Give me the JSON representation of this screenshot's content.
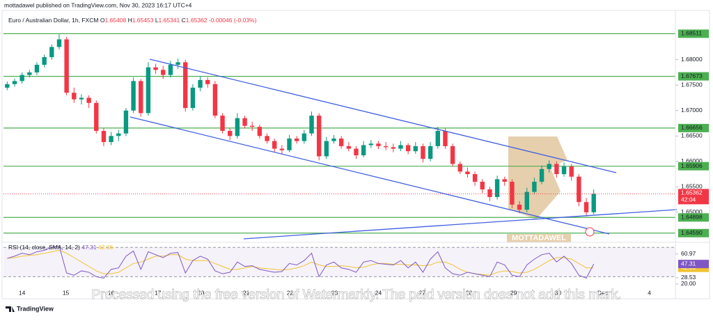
{
  "header": {
    "published": "mottadawel published on TradingView.com, Nov 30, 2023 16:17 UTC+4",
    "brand": "TradingView",
    "logo_text": "MOTTADAWEL",
    "watermark": "Processed using the free version of Watermarkly. The paid version does not add this mark."
  },
  "chart_data": {
    "type": "candlestick",
    "symbol": "Euro / Australian Dollar, 1h, FXCM",
    "ohlc_labels": [
      "O",
      "H",
      "L",
      "C"
    ],
    "ohlc": [
      1.65408,
      1.65453,
      1.65341,
      1.65362
    ],
    "change": "-0.00046 (-0.03%)",
    "up_color": "#089981",
    "down_color": "#f23645",
    "candles": [
      [
        1.6745,
        1.6757,
        1.674,
        1.6752
      ],
      [
        1.6752,
        1.6763,
        1.6747,
        1.6758
      ],
      [
        1.6758,
        1.6775,
        1.6753,
        1.677
      ],
      [
        1.677,
        1.678,
        1.6765,
        1.6775
      ],
      [
        1.6775,
        1.6795,
        1.677,
        1.679
      ],
      [
        1.679,
        1.681,
        1.6785,
        1.6805
      ],
      [
        1.6805,
        1.683,
        1.68,
        1.6825
      ],
      [
        1.6825,
        1.685,
        1.682,
        1.684
      ],
      [
        1.684,
        1.6845,
        1.673,
        1.6735
      ],
      [
        1.6735,
        1.6745,
        1.6715,
        1.6722
      ],
      [
        1.6722,
        1.6732,
        1.6712,
        1.6725
      ],
      [
        1.6725,
        1.673,
        1.6705,
        1.6715
      ],
      [
        1.6715,
        1.672,
        1.6655,
        1.666
      ],
      [
        1.666,
        1.6665,
        1.663,
        1.6638
      ],
      [
        1.6638,
        1.6658,
        1.6632,
        1.665
      ],
      [
        1.665,
        1.6662,
        1.664,
        1.6655
      ],
      [
        1.6655,
        1.6705,
        1.665,
        1.67
      ],
      [
        1.67,
        1.6765,
        1.6695,
        1.6758
      ],
      [
        1.6758,
        1.6762,
        1.6688,
        1.6695
      ],
      [
        1.6695,
        1.6795,
        1.669,
        1.6785
      ],
      [
        1.6785,
        1.6792,
        1.6772,
        1.678
      ],
      [
        1.678,
        1.6788,
        1.6762,
        1.677
      ],
      [
        1.677,
        1.6798,
        1.6765,
        1.679
      ],
      [
        1.679,
        1.6802,
        1.6782,
        1.6795
      ],
      [
        1.6795,
        1.68,
        1.6698,
        1.6705
      ],
      [
        1.6705,
        1.6752,
        1.67,
        1.6745
      ],
      [
        1.6745,
        1.6768,
        1.6738,
        1.676
      ],
      [
        1.676,
        1.6765,
        1.6745,
        1.6752
      ],
      [
        1.6752,
        1.6758,
        1.6685,
        1.669
      ],
      [
        1.669,
        1.6695,
        1.6655,
        1.666
      ],
      [
        1.666,
        1.6665,
        1.6642,
        1.665
      ],
      [
        1.665,
        1.6695,
        1.6645,
        1.6685
      ],
      [
        1.6685,
        1.669,
        1.6665,
        1.667
      ],
      [
        1.667,
        1.6678,
        1.666,
        1.6668
      ],
      [
        1.6668,
        1.6672,
        1.6645,
        1.665
      ],
      [
        1.665,
        1.6655,
        1.6635,
        1.664
      ],
      [
        1.664,
        1.6645,
        1.6618,
        1.6625
      ],
      [
        1.6625,
        1.6632,
        1.6615,
        1.6622
      ],
      [
        1.6622,
        1.6652,
        1.6618,
        1.6645
      ],
      [
        1.6645,
        1.665,
        1.6635,
        1.664
      ],
      [
        1.664,
        1.6662,
        1.6635,
        1.6655
      ],
      [
        1.6655,
        1.6698,
        1.665,
        1.669
      ],
      [
        1.669,
        1.6695,
        1.6602,
        1.661
      ],
      [
        1.661,
        1.6648,
        1.6605,
        1.664
      ],
      [
        1.664,
        1.6652,
        1.6635,
        1.6645
      ],
      [
        1.6645,
        1.665,
        1.6625,
        1.663
      ],
      [
        1.663,
        1.6638,
        1.662,
        1.6625
      ],
      [
        1.6625,
        1.663,
        1.6605,
        1.6612
      ],
      [
        1.6612,
        1.664,
        1.6608,
        1.6632
      ],
      [
        1.6632,
        1.6642,
        1.6626,
        1.6635
      ],
      [
        1.6635,
        1.664,
        1.6624,
        1.663
      ],
      [
        1.663,
        1.6638,
        1.6622,
        1.6628
      ],
      [
        1.6628,
        1.6635,
        1.6618,
        1.6625
      ],
      [
        1.6625,
        1.664,
        1.662,
        1.6632
      ],
      [
        1.6632,
        1.6636,
        1.6614,
        1.662
      ],
      [
        1.662,
        1.6638,
        1.6615,
        1.663
      ],
      [
        1.663,
        1.6635,
        1.6598,
        1.6605
      ],
      [
        1.6605,
        1.6638,
        1.66,
        1.663
      ],
      [
        1.663,
        1.6668,
        1.6625,
        1.666
      ],
      [
        1.666,
        1.6665,
        1.6625,
        1.663
      ],
      [
        1.663,
        1.6635,
        1.659,
        1.6595
      ],
      [
        1.6595,
        1.66,
        1.6575,
        1.658
      ],
      [
        1.658,
        1.6588,
        1.6568,
        1.6575
      ],
      [
        1.6575,
        1.658,
        1.6552,
        1.656
      ],
      [
        1.656,
        1.6565,
        1.6538,
        1.6545
      ],
      [
        1.6545,
        1.655,
        1.6522,
        1.653
      ],
      [
        1.653,
        1.6572,
        1.6525,
        1.6565
      ],
      [
        1.6565,
        1.657,
        1.6552,
        1.656
      ],
      [
        1.656,
        1.6565,
        1.6508,
        1.6515
      ],
      [
        1.6515,
        1.6522,
        1.6498,
        1.6505
      ],
      [
        1.6505,
        1.6548,
        1.65,
        1.654
      ],
      [
        1.654,
        1.6568,
        1.6535,
        1.656
      ],
      [
        1.656,
        1.6592,
        1.6555,
        1.6585
      ],
      [
        1.6585,
        1.6602,
        1.6578,
        1.6595
      ],
      [
        1.6595,
        1.66,
        1.6568,
        1.6575
      ],
      [
        1.6575,
        1.6598,
        1.657,
        1.659
      ],
      [
        1.659,
        1.6595,
        1.6562,
        1.657
      ],
      [
        1.657,
        1.6575,
        1.6512,
        1.652
      ],
      [
        1.652,
        1.6528,
        1.6492,
        1.65
      ],
      [
        1.65,
        1.6545,
        1.6496,
        1.65362
      ]
    ],
    "xlim": [
      0,
      90.5
    ],
    "xticks": [
      {
        "value": 2.5,
        "label": "14"
      },
      {
        "value": 8.4,
        "label": "15"
      },
      {
        "value": 14.5,
        "label": "16"
      },
      {
        "value": 20.8,
        "label": "17"
      },
      {
        "value": 26.6,
        "label": "20"
      },
      {
        "value": 32.7,
        "label": "21"
      },
      {
        "value": 38.6,
        "label": "22"
      },
      {
        "value": 44.6,
        "label": "23"
      },
      {
        "value": 50.5,
        "label": "24"
      },
      {
        "value": 56.4,
        "label": "27"
      },
      {
        "value": 62.7,
        "label": "28"
      },
      {
        "value": 68.7,
        "label": "29"
      },
      {
        "value": 74.7,
        "label": "30"
      },
      {
        "value": 80.7,
        "label": "Dec"
      },
      {
        "value": 87,
        "label": "4"
      }
    ],
    "ylim": [
      1.6445,
      1.689
    ],
    "yticks": [
      {
        "value": 1.68,
        "label": "1.68000"
      },
      {
        "value": 1.675,
        "label": "1.67500"
      },
      {
        "value": 1.67,
        "label": "1.67000"
      },
      {
        "value": 1.665,
        "label": "1.66500"
      },
      {
        "value": 1.66,
        "label": "1.66000"
      },
      {
        "value": 1.655,
        "label": "1.65500"
      },
      {
        "value": 1.65,
        "label": "1.65000"
      }
    ],
    "levels": [
      1.68511,
      1.67673,
      1.66656,
      1.65906,
      1.64898,
      {
        "value": 1.6459,
        "label": "1.64590"
      }
    ],
    "level_color": "#4caf50",
    "countdown": "42:04",
    "rsi": {
      "type": "line",
      "title": "RSI (14, close, SMA, 14, 2)",
      "ylim": [
        18,
        75
      ],
      "yticks": [
        60.97,
        28.53,
        {
          "value": 20,
          "label": "20.00"
        }
      ],
      "bands": [
        70,
        30
      ],
      "series": [
        {
          "color": "#7e57c2",
          "values": [
            55,
            58,
            62,
            60,
            64,
            66,
            70,
            72,
            35,
            32,
            38,
            36,
            30,
            28,
            40,
            42,
            58,
            65,
            40,
            64,
            60,
            56,
            62,
            63,
            35,
            52,
            58,
            54,
            38,
            34,
            36,
            50,
            44,
            45,
            40,
            38,
            36,
            37,
            48,
            46,
            52,
            62,
            30,
            46,
            50,
            42,
            40,
            36,
            50,
            52,
            48,
            47,
            46,
            52,
            42,
            50,
            36,
            54,
            64,
            42,
            34,
            32,
            36,
            34,
            32,
            30,
            50,
            46,
            32,
            30,
            46,
            54,
            60,
            62,
            50,
            58,
            48,
            32,
            28,
            47.31
          ]
        },
        {
          "color": "#f2c233",
          "values": [
            55,
            56,
            58,
            59,
            60,
            62,
            64,
            66,
            62,
            56,
            50,
            44,
            38,
            34,
            34,
            36,
            42,
            48,
            50,
            54,
            58,
            58,
            60,
            60,
            54,
            52,
            52,
            52,
            48,
            44,
            40,
            40,
            42,
            44,
            42,
            41,
            40,
            39,
            40,
            42,
            45,
            50,
            46,
            44,
            44,
            45,
            44,
            42,
            43,
            46,
            48,
            48,
            47,
            47,
            46,
            46,
            45,
            46,
            50,
            50,
            46,
            40,
            36,
            34,
            33,
            32,
            36,
            38,
            37,
            35,
            36,
            40,
            46,
            52,
            56,
            56,
            54,
            48,
            42,
            42.06
          ]
        }
      ]
    }
  }
}
